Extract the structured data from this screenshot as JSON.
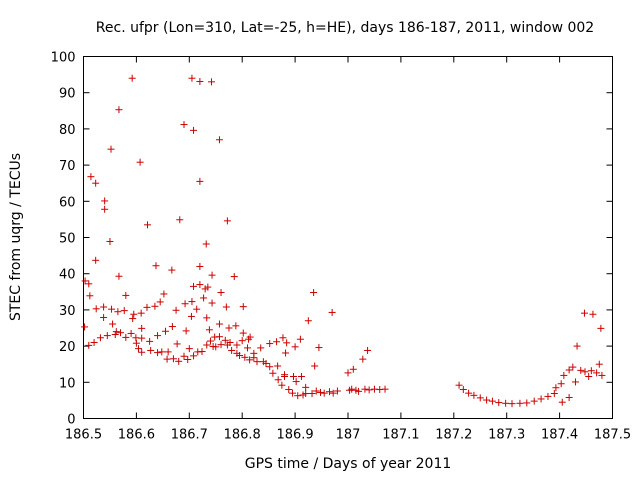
{
  "chart_data": {
    "type": "scatter",
    "title": "Rec. ufpr (Lon=310, Lat=-25, h=HE), days 186-187, 2011, window 002",
    "xlabel": "GPS time / Days of year 2011",
    "ylabel": "STEC from uqrg / TECUs",
    "xlim": [
      186.5,
      187.5
    ],
    "ylim": [
      0,
      100
    ],
    "xticks": [
      186.5,
      186.6,
      186.7,
      186.8,
      186.9,
      187,
      187.1,
      187.2,
      187.3,
      187.4,
      187.5
    ],
    "xtick_labels": [
      "186.5",
      "186.6",
      "186.7",
      "186.8",
      "186.9",
      "187",
      "187.1",
      "187.2",
      "187.3",
      "187.4",
      "187.5"
    ],
    "yticks": [
      0,
      10,
      20,
      30,
      40,
      50,
      60,
      70,
      80,
      90,
      100
    ],
    "ytick_labels": [
      "0",
      "10",
      "20",
      "30",
      "40",
      "50",
      "60",
      "70",
      "80",
      "90",
      "100"
    ],
    "marker": "plus",
    "color": "#cc0000",
    "series": [
      {
        "name": "STEC",
        "points": [
          [
            186.502,
            25.3
          ],
          [
            186.503,
            38.0
          ],
          [
            186.51,
            37.2
          ],
          [
            186.512,
            33.9
          ],
          [
            186.514,
            66.8
          ],
          [
            186.51,
            20.2
          ],
          [
            186.523,
            65.0
          ],
          [
            186.523,
            43.7
          ],
          [
            186.524,
            30.3
          ],
          [
            186.52,
            21.0
          ],
          [
            186.532,
            22.3
          ],
          [
            186.538,
            30.8
          ],
          [
            186.538,
            27.9
          ],
          [
            186.54,
            60.1
          ],
          [
            186.54,
            57.8
          ],
          [
            186.545,
            22.9
          ],
          [
            186.55,
            48.9
          ],
          [
            186.552,
            74.4
          ],
          [
            186.553,
            30.2
          ],
          [
            186.555,
            26.1
          ],
          [
            186.56,
            23.2
          ],
          [
            186.562,
            24.0
          ],
          [
            186.565,
            29.5
          ],
          [
            186.567,
            85.3
          ],
          [
            186.567,
            39.3
          ],
          [
            186.57,
            23.7
          ],
          [
            186.577,
            29.8
          ],
          [
            186.58,
            34.0
          ],
          [
            186.58,
            22.4
          ],
          [
            186.59,
            23.5
          ],
          [
            186.592,
            94.0
          ],
          [
            186.593,
            27.6
          ],
          [
            186.595,
            28.8
          ],
          [
            186.599,
            22.3
          ],
          [
            186.6,
            20.8
          ],
          [
            186.604,
            19.3
          ],
          [
            186.607,
            70.8
          ],
          [
            186.609,
            29.1
          ],
          [
            186.61,
            22.2
          ],
          [
            186.61,
            24.9
          ],
          [
            186.61,
            18.3
          ],
          [
            186.62,
            30.7
          ],
          [
            186.621,
            53.5
          ],
          [
            186.625,
            21.3
          ],
          [
            186.627,
            18.8
          ],
          [
            186.635,
            31.0
          ],
          [
            186.637,
            42.2
          ],
          [
            186.64,
            18.2
          ],
          [
            186.64,
            22.9
          ],
          [
            186.645,
            32.2
          ],
          [
            186.648,
            18.4
          ],
          [
            186.652,
            34.4
          ],
          [
            186.655,
            24.1
          ],
          [
            186.658,
            16.4
          ],
          [
            186.66,
            18.4
          ],
          [
            186.667,
            41.0
          ],
          [
            186.668,
            25.4
          ],
          [
            186.67,
            16.5
          ],
          [
            186.675,
            29.9
          ],
          [
            186.677,
            20.6
          ],
          [
            186.682,
            54.9
          ],
          [
            186.68,
            15.8
          ],
          [
            186.69,
            17.2
          ],
          [
            186.69,
            81.2
          ],
          [
            186.692,
            31.7
          ],
          [
            186.694,
            24.2
          ],
          [
            186.697,
            16.3
          ],
          [
            186.7,
            19.3
          ],
          [
            186.704,
            28.2
          ],
          [
            186.705,
            94.0
          ],
          [
            186.705,
            32.3
          ],
          [
            186.708,
            79.6
          ],
          [
            186.708,
            36.5
          ],
          [
            186.708,
            17.3
          ],
          [
            186.714,
            30.2
          ],
          [
            186.716,
            18.4
          ],
          [
            186.72,
            93.1
          ],
          [
            186.72,
            65.5
          ],
          [
            186.72,
            42.0
          ],
          [
            186.72,
            37.0
          ],
          [
            186.724,
            18.5
          ],
          [
            186.727,
            33.3
          ],
          [
            186.73,
            35.8
          ],
          [
            186.732,
            48.2
          ],
          [
            186.733,
            27.8
          ],
          [
            186.733,
            20.3
          ],
          [
            186.735,
            36.3
          ],
          [
            186.738,
            24.5
          ],
          [
            186.74,
            21.4
          ],
          [
            186.742,
            93.0
          ],
          [
            186.743,
            39.6
          ],
          [
            186.743,
            31.9
          ],
          [
            186.745,
            19.9
          ],
          [
            186.748,
            22.5
          ],
          [
            186.75,
            19.8
          ],
          [
            186.757,
            77.0
          ],
          [
            186.757,
            26.1
          ],
          [
            186.757,
            22.6
          ],
          [
            186.76,
            20.4
          ],
          [
            186.76,
            34.8
          ],
          [
            186.768,
            21.6
          ],
          [
            186.77,
            30.8
          ],
          [
            186.772,
            54.6
          ],
          [
            186.772,
            20.3
          ],
          [
            186.775,
            25.0
          ],
          [
            186.777,
            21.0
          ],
          [
            186.78,
            18.8
          ],
          [
            186.785,
            39.2
          ],
          [
            186.788,
            25.6
          ],
          [
            186.79,
            20.3
          ],
          [
            186.79,
            18.0
          ],
          [
            186.795,
            17.4
          ],
          [
            186.8,
            21.5
          ],
          [
            186.802,
            23.6
          ],
          [
            186.802,
            30.9
          ],
          [
            186.805,
            16.9
          ],
          [
            186.81,
            19.5
          ],
          [
            186.812,
            21.9
          ],
          [
            186.814,
            16.2
          ],
          [
            186.815,
            22.5
          ],
          [
            186.822,
            18.0
          ],
          [
            186.822,
            16.8
          ],
          [
            186.828,
            15.7
          ],
          [
            186.835,
            19.5
          ],
          [
            186.84,
            15.7
          ],
          [
            186.845,
            15.2
          ],
          [
            186.852,
            20.7
          ],
          [
            186.852,
            14.3
          ],
          [
            186.858,
            12.5
          ],
          [
            186.865,
            21.2
          ],
          [
            186.867,
            14.5
          ],
          [
            186.868,
            10.7
          ],
          [
            186.875,
            9.2
          ],
          [
            186.877,
            22.3
          ],
          [
            186.88,
            12.1
          ],
          [
            186.88,
            11.6
          ],
          [
            186.882,
            18.1
          ],
          [
            186.884,
            20.9
          ],
          [
            186.888,
            8.0
          ],
          [
            186.895,
            7.0
          ],
          [
            186.897,
            11.6
          ],
          [
            186.9,
            19.8
          ],
          [
            186.902,
            10.2
          ],
          [
            186.905,
            6.3
          ],
          [
            186.91,
            21.9
          ],
          [
            186.912,
            11.6
          ],
          [
            186.915,
            6.5
          ],
          [
            186.92,
            6.9
          ],
          [
            186.92,
            8.6
          ],
          [
            186.925,
            27.0
          ],
          [
            186.932,
            6.9
          ],
          [
            186.935,
            34.8
          ],
          [
            186.937,
            14.5
          ],
          [
            186.94,
            7.6
          ],
          [
            186.945,
            19.6
          ],
          [
            186.948,
            7.2
          ],
          [
            186.955,
            7.0
          ],
          [
            186.965,
            7.4
          ],
          [
            186.97,
            29.3
          ],
          [
            186.972,
            7.0
          ],
          [
            186.98,
            7.6
          ],
          [
            187.0,
            12.6
          ],
          [
            187.003,
            7.8
          ],
          [
            187.007,
            8.1
          ],
          [
            187.01,
            13.6
          ],
          [
            187.015,
            7.8
          ],
          [
            187.02,
            7.5
          ],
          [
            187.028,
            16.4
          ],
          [
            187.032,
            8.1
          ],
          [
            187.037,
            18.8
          ],
          [
            187.04,
            7.9
          ],
          [
            187.05,
            8.1
          ],
          [
            187.06,
            8.0
          ],
          [
            187.07,
            8.1
          ],
          [
            187.21,
            9.2
          ],
          [
            187.218,
            8.0
          ],
          [
            187.228,
            7.0
          ],
          [
            187.238,
            6.4
          ],
          [
            187.25,
            5.7
          ],
          [
            187.262,
            5.1
          ],
          [
            187.273,
            4.8
          ],
          [
            187.285,
            4.4
          ],
          [
            187.298,
            4.2
          ],
          [
            187.31,
            4.1
          ],
          [
            187.325,
            4.2
          ],
          [
            187.338,
            4.3
          ],
          [
            187.352,
            4.8
          ],
          [
            187.365,
            5.4
          ],
          [
            187.378,
            6.1
          ],
          [
            187.39,
            6.9
          ],
          [
            187.393,
            8.5
          ],
          [
            187.403,
            9.6
          ],
          [
            187.405,
            4.5
          ],
          [
            187.408,
            11.9
          ],
          [
            187.418,
            5.8
          ],
          [
            187.418,
            13.4
          ],
          [
            187.425,
            14.2
          ],
          [
            187.43,
            10.1
          ],
          [
            187.433,
            20.0
          ],
          [
            187.44,
            13.3
          ],
          [
            187.447,
            29.1
          ],
          [
            187.448,
            12.9
          ],
          [
            187.455,
            11.6
          ],
          [
            187.46,
            13.2
          ],
          [
            187.463,
            28.8
          ],
          [
            187.47,
            12.6
          ],
          [
            187.475,
            15.0
          ],
          [
            187.478,
            24.9
          ],
          [
            187.48,
            11.9
          ]
        ]
      }
    ]
  }
}
